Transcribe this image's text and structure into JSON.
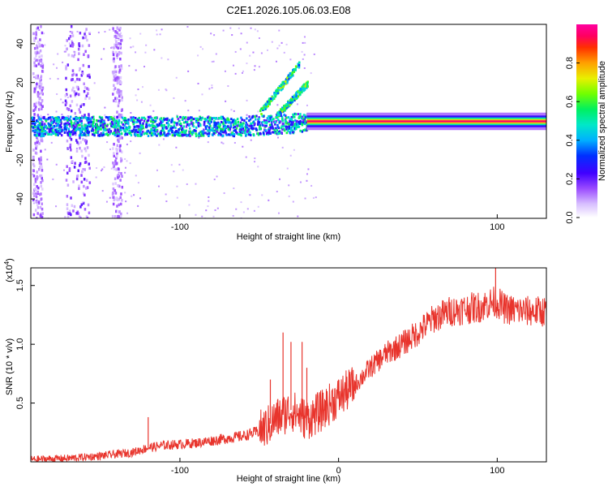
{
  "title": "C2E1.2026.105.06.03.E08",
  "chart_data": [
    {
      "type": "heatmap",
      "name": "spectrogram",
      "xlabel": "Height of straight line (km)",
      "ylabel": "Frequency (Hz)",
      "xlim": [
        -194,
        131
      ],
      "ylim": [
        -50,
        50
      ],
      "xticks": [
        -100,
        100
      ],
      "yticks": [
        -40,
        -20,
        0,
        20,
        40
      ],
      "colorbar": {
        "label": "Normalized spectral amplitude",
        "range": [
          0,
          1
        ],
        "ticks": [
          0.0,
          0.2,
          0.4,
          0.6,
          0.8
        ]
      },
      "features": [
        {
          "name": "central-band-noisy",
          "x_range": [
            -194,
            -20
          ],
          "freq_center": -2,
          "freq_halfwidth": 5,
          "amplitude": 0.35
        },
        {
          "name": "central-line-strong",
          "x_range": [
            -20,
            131
          ],
          "freq_center": 0,
          "freq_halfwidth": 1.5,
          "amplitude": 0.95
        },
        {
          "name": "rising-branch-1",
          "x_from": -50,
          "x_to": -25,
          "freq_from": 5,
          "freq_to": 30,
          "amplitude": 0.5
        },
        {
          "name": "rising-branch-2",
          "x_from": -40,
          "x_to": -20,
          "freq_from": 3,
          "freq_to": 20,
          "amplitude": 0.5
        },
        {
          "name": "vertical-stripe-1",
          "x": -190,
          "amplitude": 0.12
        },
        {
          "name": "vertical-stripe-2",
          "x": -165,
          "amplitude": 0.15
        },
        {
          "name": "vertical-stripe-3",
          "x": -140,
          "amplitude": 0.12
        }
      ]
    },
    {
      "type": "line",
      "name": "snr",
      "xlabel": "Height of straight line (km)",
      "ylabel": "SNR (10 * v/v)",
      "y_exponent_label": "(x10",
      "y_exponent_sup": "4",
      "y_exponent_close": ")",
      "xlim": [
        -194,
        131
      ],
      "ylim": [
        0,
        1.65
      ],
      "xticks": [
        -100,
        0,
        100
      ],
      "yticks": [
        0.5,
        1.0,
        1.5
      ],
      "ytick_labels": [
        "0.5",
        "1.0",
        "1.5"
      ],
      "color": "#e8342c",
      "series": [
        {
          "name": "SNR",
          "x": [
            -194,
            -170,
            -150,
            -130,
            -120,
            -110,
            -100,
            -90,
            -80,
            -70,
            -60,
            -50,
            -45,
            -40,
            -35,
            -30,
            -25,
            -20,
            -15,
            -10,
            -5,
            0,
            10,
            20,
            30,
            40,
            50,
            60,
            70,
            80,
            90,
            95,
            100,
            105,
            110,
            120,
            131
          ],
          "values": [
            0.02,
            0.03,
            0.05,
            0.08,
            0.12,
            0.14,
            0.15,
            0.16,
            0.18,
            0.2,
            0.22,
            0.26,
            0.3,
            0.36,
            0.4,
            0.44,
            0.4,
            0.36,
            0.4,
            0.44,
            0.5,
            0.55,
            0.65,
            0.8,
            0.92,
            1.0,
            1.1,
            1.22,
            1.28,
            1.3,
            1.32,
            1.35,
            1.36,
            1.3,
            1.29,
            1.28,
            1.28
          ]
        }
      ],
      "spikes": [
        {
          "x": -120,
          "value": 0.38
        },
        {
          "x": -43,
          "value": 0.7
        },
        {
          "x": -35,
          "value": 1.1
        },
        {
          "x": -30,
          "value": 1.02
        },
        {
          "x": -23,
          "value": 1.02
        },
        {
          "x": -20,
          "value": 0.8
        },
        {
          "x": 99,
          "value": 1.7
        }
      ]
    }
  ]
}
